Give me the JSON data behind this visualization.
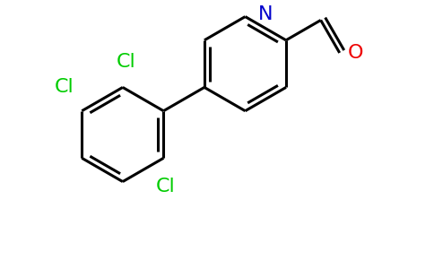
{
  "background_color": "#ffffff",
  "bond_color": "#000000",
  "cl_color": "#00cc00",
  "n_color": "#0000cc",
  "o_color": "#ee0000",
  "line_width": 2.2,
  "figsize": [
    4.84,
    3.0
  ],
  "dpi": 100,
  "xlim": [
    -2.8,
    5.8
  ],
  "ylim": [
    -2.8,
    2.8
  ],
  "font_size": 16
}
